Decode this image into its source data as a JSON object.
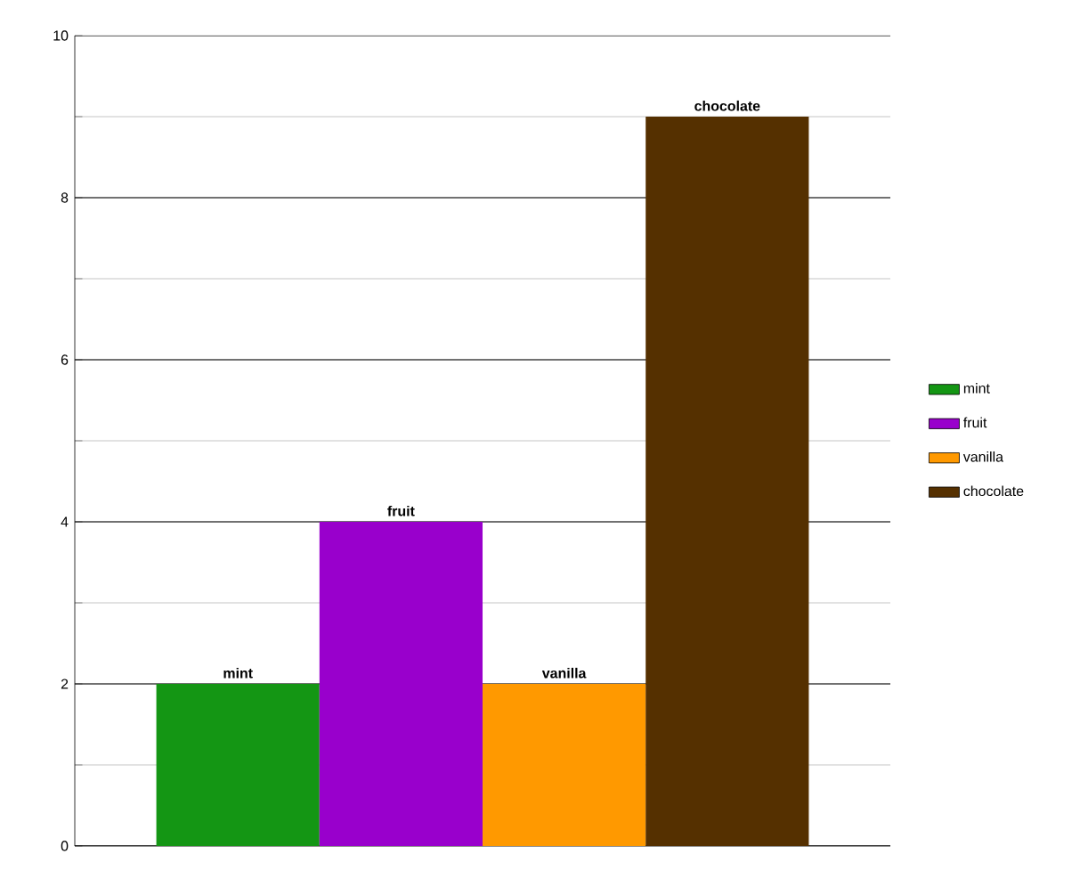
{
  "chart_data": {
    "type": "bar",
    "categories": [
      null
    ],
    "series": [
      {
        "name": "mint",
        "color": "#149614",
        "values": [
          2
        ]
      },
      {
        "name": "fruit",
        "color": "#9900cc",
        "values": [
          4
        ]
      },
      {
        "name": "vanilla",
        "color": "#ff9900",
        "values": [
          2
        ]
      },
      {
        "name": "chocolate",
        "color": "#553000",
        "values": [
          9
        ]
      }
    ],
    "ylim": [
      0,
      10
    ],
    "yticks": [
      0,
      {
        "value": 1,
        "label": null
      },
      2,
      {
        "value": 3,
        "label": null
      },
      4,
      {
        "value": 5,
        "label": null
      },
      6,
      {
        "value": 7,
        "label": null
      },
      8,
      {
        "value": 9,
        "label": null
      },
      10
    ],
    "grid": "y",
    "legend": "right"
  }
}
